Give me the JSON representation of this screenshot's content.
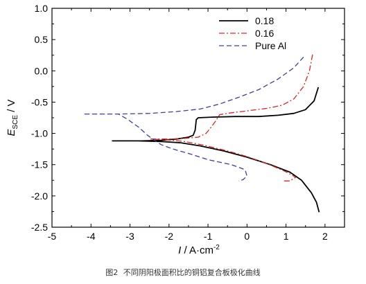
{
  "chart_data": {
    "type": "line",
    "xlabel_symbol": "I",
    "xlabel_rest": " / A·cm",
    "xlabel_sup": "-2",
    "ylabel_symbol": "E",
    "ylabel_sub": "SCE",
    "ylabel_rest": " / V",
    "xlim": [
      -5,
      2.5
    ],
    "ylim": [
      -2.5,
      1.0
    ],
    "xticks": [
      -5,
      -4,
      -3,
      -2,
      -1,
      0,
      1,
      2
    ],
    "yticks": [
      1.0,
      0.5,
      0.0,
      -0.5,
      -1.0,
      -1.5,
      -2.0,
      -2.5
    ],
    "xtick_labels": [
      "-5",
      "-4",
      "-3",
      "-2",
      "-1",
      "0",
      "1",
      "2"
    ],
    "ytick_labels": [
      "1.0",
      "0.5",
      "0.0",
      "-0.5",
      "-1.0",
      "-1.5",
      "-2.0",
      "-2.5"
    ],
    "grid": false,
    "legend_position": "top-right",
    "series": [
      {
        "name": "0.18",
        "color": "#000000",
        "dash": "solid",
        "points": [
          [
            1.83,
            -0.26
          ],
          [
            1.72,
            -0.48
          ],
          [
            1.5,
            -0.62
          ],
          [
            1.2,
            -0.68
          ],
          [
            0.8,
            -0.71
          ],
          [
            0.3,
            -0.73
          ],
          [
            -0.3,
            -0.73
          ],
          [
            -0.9,
            -0.74
          ],
          [
            -1.25,
            -0.75
          ],
          [
            -1.3,
            -0.78
          ],
          [
            -1.33,
            -0.95
          ],
          [
            -1.38,
            -1.03
          ],
          [
            -1.5,
            -1.06
          ],
          [
            -1.8,
            -1.09
          ],
          [
            -2.2,
            -1.11
          ],
          [
            -2.7,
            -1.12
          ],
          [
            -3.1,
            -1.12
          ],
          [
            -3.45,
            -1.12
          ],
          [
            -3.45,
            -1.12
          ],
          [
            -2.8,
            -1.12
          ],
          [
            -2.2,
            -1.13
          ],
          [
            -1.7,
            -1.15
          ],
          [
            -1.2,
            -1.2
          ],
          [
            -0.6,
            -1.28
          ],
          [
            0.0,
            -1.38
          ],
          [
            0.6,
            -1.5
          ],
          [
            1.1,
            -1.62
          ],
          [
            1.4,
            -1.75
          ],
          [
            1.65,
            -1.95
          ],
          [
            1.78,
            -2.1
          ],
          [
            1.85,
            -2.26
          ]
        ]
      },
      {
        "name": "0.16",
        "color": "#e02020",
        "dash": "8 3 2 3",
        "points": [
          [
            1.68,
            0.26
          ],
          [
            1.6,
            0.0
          ],
          [
            1.45,
            -0.25
          ],
          [
            1.2,
            -0.45
          ],
          [
            0.9,
            -0.55
          ],
          [
            0.5,
            -0.6
          ],
          [
            0.0,
            -0.64
          ],
          [
            -0.4,
            -0.67
          ],
          [
            -0.7,
            -0.7
          ],
          [
            -0.8,
            -0.8
          ],
          [
            -0.92,
            -0.9
          ],
          [
            -1.05,
            -1.0
          ],
          [
            -1.25,
            -1.06
          ],
          [
            -1.6,
            -1.08
          ],
          [
            -2.0,
            -1.09
          ],
          [
            -2.5,
            -1.09
          ],
          [
            -2.5,
            -1.09
          ],
          [
            -2.1,
            -1.1
          ],
          [
            -1.6,
            -1.13
          ],
          [
            -1.1,
            -1.19
          ],
          [
            -0.5,
            -1.28
          ],
          [
            0.0,
            -1.37
          ],
          [
            0.5,
            -1.48
          ],
          [
            0.95,
            -1.6
          ],
          [
            1.25,
            -1.7
          ],
          [
            1.1,
            -1.76
          ],
          [
            0.92,
            -1.76
          ]
        ]
      },
      {
        "name": "Pure Al",
        "color": "#3a3ab4",
        "dash": "7 4",
        "points": [
          [
            1.45,
            0.22
          ],
          [
            1.2,
            0.05
          ],
          [
            0.8,
            -0.13
          ],
          [
            0.3,
            -0.3
          ],
          [
            -0.2,
            -0.42
          ],
          [
            -0.7,
            -0.53
          ],
          [
            -1.2,
            -0.61
          ],
          [
            -1.8,
            -0.65
          ],
          [
            -2.5,
            -0.68
          ],
          [
            -3.3,
            -0.69
          ],
          [
            -4.2,
            -0.69
          ],
          [
            -3.3,
            -0.69
          ],
          [
            -3.05,
            -0.78
          ],
          [
            -2.78,
            -0.9
          ],
          [
            -2.55,
            -1.03
          ],
          [
            -2.4,
            -1.1
          ],
          [
            -2.2,
            -1.18
          ],
          [
            -1.9,
            -1.25
          ],
          [
            -1.5,
            -1.32
          ],
          [
            -1.0,
            -1.42
          ],
          [
            -0.4,
            -1.5
          ],
          [
            -0.05,
            -1.58
          ],
          [
            0.0,
            -1.68
          ],
          [
            -0.1,
            -1.74
          ],
          [
            -0.22,
            -1.76
          ]
        ]
      }
    ]
  },
  "caption": {
    "label": "图2",
    "text": "不同阴阳极面积比的铜铝复合板极化曲线"
  }
}
